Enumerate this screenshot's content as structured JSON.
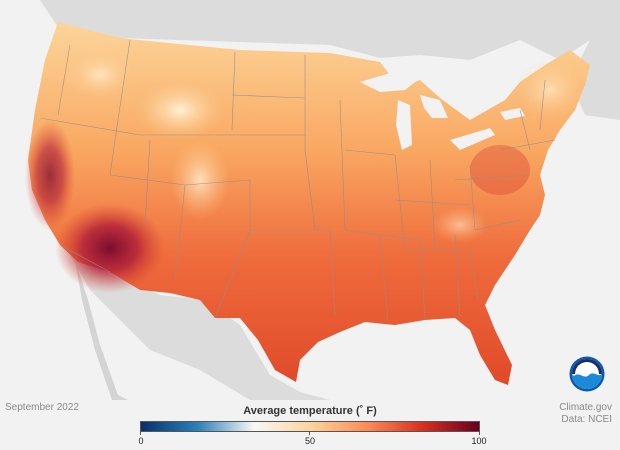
{
  "map": {
    "period": "September 2022",
    "legend_title": "Average temperature (˚ F)",
    "legend_ticks": [
      "0",
      "50",
      "100"
    ],
    "colors": {
      "cold": "#08306b",
      "cool": "#2c7fb8",
      "neutral": "#f7f7f7",
      "mild": "#fdd49e",
      "warm": "#fc8d59",
      "hot": "#d7301f",
      "hottest": "#67001f",
      "land_outside": "#d9d9d9",
      "water": "#f2f2f2"
    }
  },
  "credits": {
    "source": "Climate.gov",
    "data": "Data: NCEI"
  },
  "logo": {
    "text": "NOAA"
  }
}
